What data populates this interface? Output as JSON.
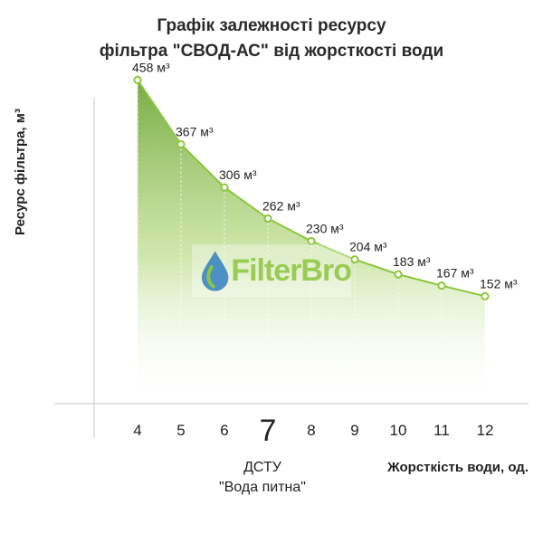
{
  "chart_data": {
    "type": "area",
    "title": [
      "Графік залежності ресурсу",
      "фільтра \"СВОД-АС\" від жорсткості води"
    ],
    "ylabel": "Ресурс фільтра, м³",
    "xlabel": "Жорсткість води, од.",
    "x": [
      4,
      5,
      6,
      7,
      8,
      9,
      10,
      11,
      12
    ],
    "x_tick_labels": [
      "4",
      "5",
      "6",
      "7",
      "8",
      "9",
      "10",
      "11",
      "12"
    ],
    "highlight_tick": "7",
    "series": [
      {
        "x": [
          4,
          5,
          6,
          7,
          8,
          9,
          10,
          11,
          12
        ],
        "values": [
          458,
          367,
          306,
          262,
          230,
          204,
          183,
          167,
          152
        ],
        "labels": [
          "458 м³",
          "367 м³",
          "306 м³",
          "262 м³",
          "230 м³",
          "204 м³",
          "183 м³",
          "167 м³",
          "152 м³"
        ]
      }
    ],
    "ylim": [
      0,
      520
    ],
    "xlim": [
      3,
      13
    ],
    "annotation": [
      "ДСТУ",
      "\"Вода питна\""
    ],
    "colors": {
      "line": "#8cc63f",
      "fill_top": "#6fa83a",
      "fill_bottom": "#ffffff"
    },
    "grid": false
  },
  "watermark": {
    "text": "FilterBro"
  }
}
